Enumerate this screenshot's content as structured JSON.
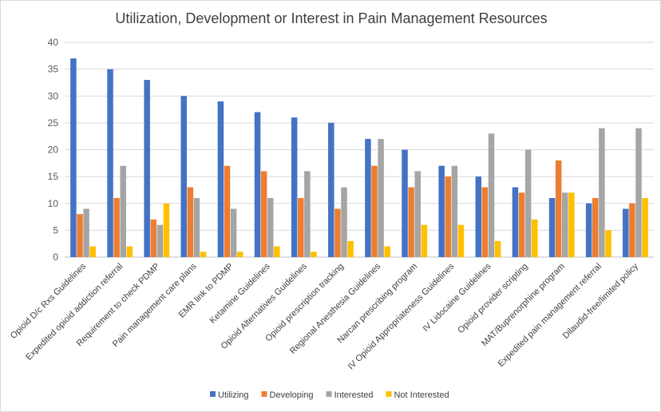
{
  "chart_data": {
    "type": "bar",
    "title": "Utilization, Development or Interest in Pain Management Resources",
    "xlabel": "",
    "ylabel": "",
    "ylim": [
      0,
      40
    ],
    "yticks": [
      0,
      5,
      10,
      15,
      20,
      25,
      30,
      35,
      40
    ],
    "grid": true,
    "legend": "bottom",
    "categories": [
      "Opioid D/c Rxs Guidelines",
      "Expedited opioid addiction referral",
      "Requirement to check PDMP",
      "Pain management care plans",
      "EMR link to PDMP",
      "Ketamine Guidelines",
      "Opioid Alternatives Guidelines",
      "Opioid prescription tracking",
      "Regional Anesthesia Guidelines",
      "Narcan prescribing program",
      "IV Opioid Appropriateness Guidelines",
      "IV Lidocaine Guidelines",
      "Opioid provider scripting",
      "MAT/Buprenorphine program",
      "Expedited pain management referral",
      "Dilaudid-free/limited policy"
    ],
    "series": [
      {
        "name": "Utilizing",
        "color": "#4472C4",
        "values": [
          37,
          35,
          33,
          30,
          29,
          27,
          26,
          25,
          22,
          20,
          17,
          15,
          13,
          11,
          10,
          9
        ]
      },
      {
        "name": "Developing",
        "color": "#ED7D31",
        "values": [
          8,
          11,
          7,
          13,
          17,
          16,
          11,
          9,
          17,
          13,
          15,
          13,
          12,
          18,
          11,
          10
        ]
      },
      {
        "name": "Interested",
        "color": "#A5A5A5",
        "values": [
          9,
          17,
          6,
          11,
          9,
          11,
          16,
          13,
          22,
          16,
          17,
          23,
          20,
          12,
          24,
          24
        ]
      },
      {
        "name": "Not Interested",
        "color": "#FFC000",
        "values": [
          2,
          2,
          10,
          1,
          1,
          2,
          1,
          3,
          2,
          6,
          6,
          3,
          7,
          12,
          5,
          11
        ]
      }
    ]
  }
}
